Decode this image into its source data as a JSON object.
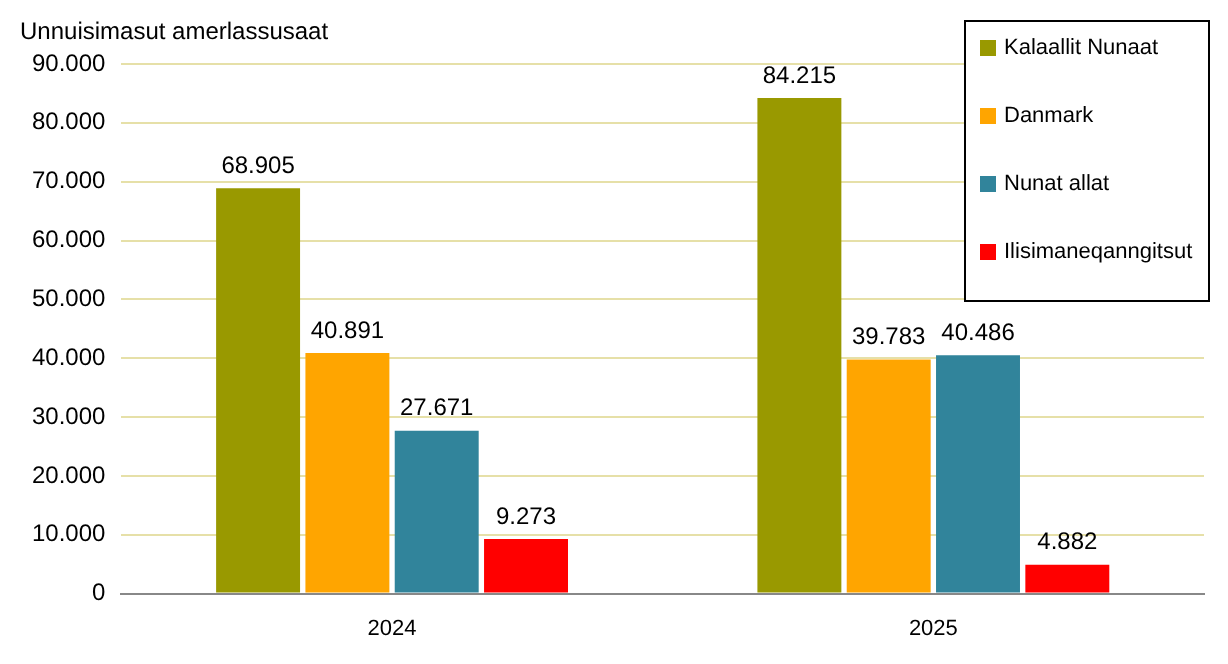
{
  "chart_data": {
    "type": "bar",
    "ylabel": "Unnuisimasut amerlassusaat",
    "categories": [
      "2024",
      "2025"
    ],
    "series": [
      {
        "name": "Kalaallit Nunaat",
        "color": "#999900",
        "values": [
          68905,
          84215
        ],
        "value_labels": [
          "68.905",
          "84.215"
        ]
      },
      {
        "name": "Danmark",
        "color": "#ffa500",
        "values": [
          40891,
          39783
        ],
        "value_labels": [
          "40.891",
          "39.783"
        ]
      },
      {
        "name": "Nunat allat",
        "color": "#31849b",
        "values": [
          27671,
          40486
        ],
        "value_labels": [
          "27.671",
          "40.486"
        ]
      },
      {
        "name": "Ilisimaneqanngitsut",
        "color": "#ff0000",
        "values": [
          9273,
          4882
        ],
        "value_labels": [
          "9.273",
          "4.882"
        ]
      }
    ],
    "ylim": [
      0,
      90000
    ],
    "yticks": [
      0,
      {
        "value": 10000,
        "label": "10.000"
      },
      {
        "value": 20000,
        "label": "20.000"
      },
      {
        "value": 30000,
        "label": "30.000"
      },
      {
        "value": 40000,
        "label": "40.000"
      },
      {
        "value": 50000,
        "label": "50.000"
      },
      {
        "value": 60000,
        "label": "60.000"
      },
      {
        "value": 70000,
        "label": "70.000"
      },
      {
        "value": 80000,
        "label": "80.000"
      },
      {
        "value": 90000,
        "label": "90.000"
      }
    ],
    "grid": "y",
    "legend": "top right"
  }
}
